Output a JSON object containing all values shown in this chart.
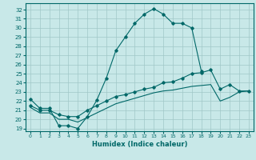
{
  "xlabel": "Humidex (Indice chaleur)",
  "background_color": "#c8e8e8",
  "grid_color": "#a0c8c8",
  "line_color": "#006868",
  "xlim": [
    -0.5,
    23.5
  ],
  "ylim": [
    18.7,
    32.7
  ],
  "yticks": [
    19,
    20,
    21,
    22,
    23,
    24,
    25,
    26,
    27,
    28,
    29,
    30,
    31,
    32
  ],
  "xticks": [
    0,
    1,
    2,
    3,
    4,
    5,
    6,
    7,
    8,
    9,
    10,
    11,
    12,
    13,
    14,
    15,
    16,
    17,
    18,
    19,
    20,
    21,
    22,
    23
  ],
  "line1_x": [
    0,
    1,
    2,
    3,
    4,
    5,
    6,
    7,
    8,
    9,
    10,
    11,
    12,
    13,
    14,
    15,
    16,
    17,
    18
  ],
  "line1_y": [
    22.2,
    21.2,
    21.2,
    19.3,
    19.3,
    19.0,
    20.3,
    22.1,
    24.5,
    27.5,
    29.0,
    30.5,
    31.5,
    32.1,
    31.5,
    30.5,
    30.5,
    30.0,
    25.3
  ],
  "line2_x": [
    0,
    1,
    2,
    3,
    4,
    5,
    6,
    7,
    8,
    9,
    10,
    11,
    12,
    13,
    14,
    15,
    16,
    17,
    18,
    19,
    20,
    21,
    22,
    23
  ],
  "line2_y": [
    21.5,
    21.0,
    21.0,
    20.5,
    20.3,
    20.3,
    21.0,
    21.5,
    22.0,
    22.5,
    22.7,
    23.0,
    23.3,
    23.5,
    24.0,
    24.1,
    24.5,
    25.0,
    25.1,
    25.4,
    23.3,
    23.8,
    23.1,
    23.1
  ],
  "line3_x": [
    0,
    1,
    2,
    3,
    4,
    5,
    6,
    7,
    8,
    9,
    10,
    11,
    12,
    13,
    14,
    15,
    16,
    17,
    18,
    19,
    20,
    21,
    22,
    23
  ],
  "line3_y": [
    21.3,
    20.7,
    20.7,
    20.0,
    20.0,
    19.7,
    20.2,
    20.7,
    21.2,
    21.7,
    22.0,
    22.3,
    22.6,
    22.9,
    23.1,
    23.2,
    23.4,
    23.6,
    23.7,
    23.8,
    22.0,
    22.4,
    23.0,
    23.1
  ]
}
